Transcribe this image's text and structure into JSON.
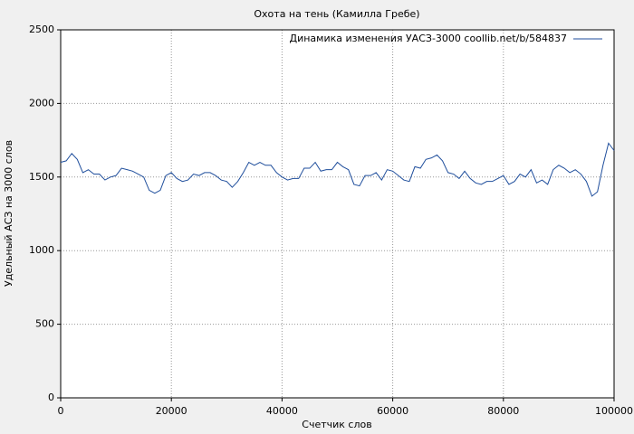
{
  "chart_data": {
    "type": "line",
    "title": "Охота на тень (Камилла Гребе)",
    "x_label": "Счетчик слов",
    "y_label": "Удельный АСЗ на 3000 слов",
    "x": [
      0,
      1000,
      2000,
      3000,
      4000,
      5000,
      6000,
      7000,
      8000,
      9000,
      10000,
      11000,
      12000,
      13000,
      14000,
      15000,
      16000,
      17000,
      18000,
      19000,
      20000,
      21000,
      22000,
      23000,
      24000,
      25000,
      26000,
      27000,
      28000,
      29000,
      30000,
      31000,
      32000,
      33000,
      34000,
      35000,
      36000,
      37000,
      38000,
      39000,
      40000,
      41000,
      42000,
      43000,
      44000,
      45000,
      46000,
      47000,
      48000,
      49000,
      50000,
      51000,
      52000,
      53000,
      54000,
      55000,
      56000,
      57000,
      58000,
      59000,
      60000,
      61000,
      62000,
      63000,
      64000,
      65000,
      66000,
      67000,
      68000,
      69000,
      70000,
      71000,
      72000,
      73000,
      74000,
      75000,
      76000,
      77000,
      78000,
      79000,
      80000,
      81000,
      82000,
      83000,
      84000,
      85000,
      86000,
      87000,
      88000,
      89000,
      90000,
      91000,
      92000,
      93000,
      94000,
      95000,
      96000,
      97000,
      98000,
      99000,
      100000
    ],
    "series": [
      {
        "name": "Динамика изменения УАСЗ-3000 coollib.net/b/584837",
        "color": "#1f4e9c",
        "values": [
          1600,
          1610,
          1660,
          1620,
          1530,
          1550,
          1520,
          1520,
          1480,
          1500,
          1510,
          1560,
          1550,
          1540,
          1520,
          1500,
          1410,
          1390,
          1410,
          1510,
          1530,
          1490,
          1470,
          1480,
          1520,
          1510,
          1530,
          1530,
          1510,
          1480,
          1470,
          1430,
          1470,
          1530,
          1600,
          1580,
          1600,
          1580,
          1580,
          1530,
          1500,
          1480,
          1490,
          1490,
          1560,
          1560,
          1600,
          1540,
          1550,
          1550,
          1600,
          1570,
          1550,
          1450,
          1440,
          1510,
          1510,
          1530,
          1480,
          1550,
          1540,
          1510,
          1480,
          1470,
          1570,
          1560,
          1620,
          1630,
          1650,
          1610,
          1530,
          1520,
          1490,
          1540,
          1490,
          1460,
          1450,
          1470,
          1470,
          1490,
          1510,
          1450,
          1470,
          1520,
          1500,
          1550,
          1460,
          1480,
          1450,
          1550,
          1580,
          1560,
          1530,
          1550,
          1520,
          1470,
          1370,
          1400,
          1580,
          1730,
          1680
        ]
      }
    ],
    "xlim": [
      0,
      100000
    ],
    "xticks": [
      0,
      20000,
      40000,
      60000,
      80000,
      100000
    ],
    "ylim": [
      0,
      2500
    ],
    "yticks": [
      0,
      500,
      1000,
      1500,
      2000,
      2500
    ],
    "grid": true,
    "legend": "upper right"
  }
}
